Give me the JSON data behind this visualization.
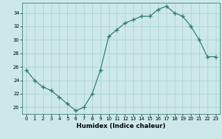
{
  "x": [
    0,
    1,
    2,
    3,
    4,
    5,
    6,
    7,
    8,
    9,
    10,
    11,
    12,
    13,
    14,
    15,
    16,
    17,
    18,
    19,
    20,
    21,
    22,
    23
  ],
  "y": [
    25.5,
    24.0,
    23.0,
    22.5,
    21.5,
    20.5,
    19.5,
    20.0,
    22.0,
    25.5,
    30.5,
    31.5,
    32.5,
    33.0,
    33.5,
    33.5,
    34.5,
    35.0,
    34.0,
    33.5,
    32.0,
    30.0,
    27.5,
    27.5
  ],
  "xlabel": "Humidex (Indice chaleur)",
  "xlim": [
    -0.5,
    23.5
  ],
  "ylim": [
    19.0,
    35.5
  ],
  "yticks": [
    20,
    22,
    24,
    26,
    28,
    30,
    32,
    34
  ],
  "xticks": [
    0,
    1,
    2,
    3,
    4,
    5,
    6,
    7,
    8,
    9,
    10,
    11,
    12,
    13,
    14,
    15,
    16,
    17,
    18,
    19,
    20,
    21,
    22,
    23
  ],
  "line_color": "#2e7d6e",
  "marker": "+",
  "markersize": 4,
  "linewidth": 0.9,
  "bg_color": "#cce8eb",
  "grid_color": "#aacdd2",
  "xlabel_fontsize": 6.5,
  "tick_fontsize": 5.0
}
